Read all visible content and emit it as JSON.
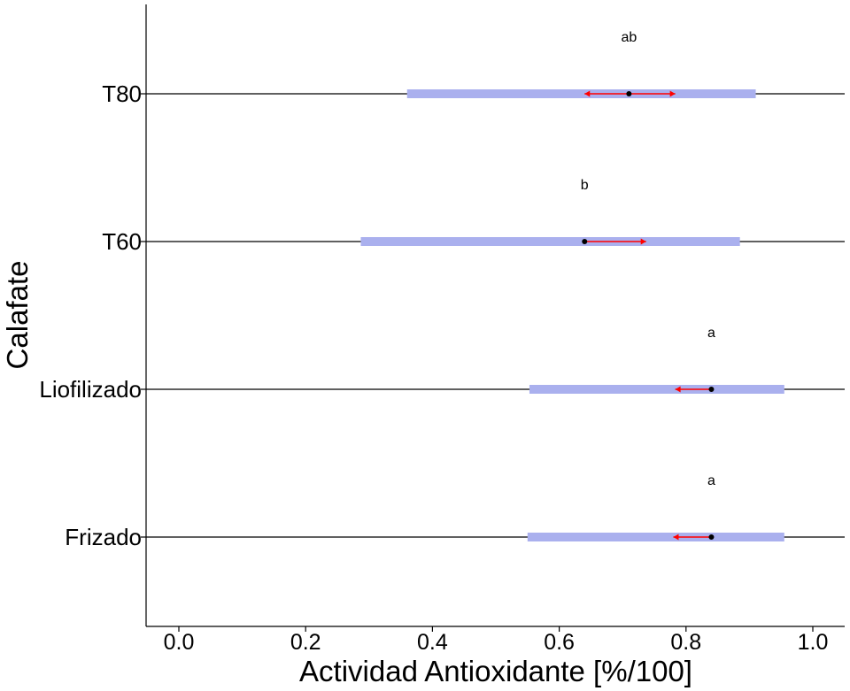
{
  "chart_data": {
    "type": "interval",
    "xlabel": "Actividad Antioxidante [%/100]",
    "ylabel": "Calafate",
    "xlim": [
      -0.05,
      1.05
    ],
    "xticks": [
      0.0,
      0.2,
      0.4,
      0.6,
      0.8,
      1.0
    ],
    "xtick_labels": [
      "0.0",
      "0.2",
      "0.4",
      "0.6",
      "0.8",
      "1.0"
    ],
    "categories": [
      "Frizado",
      "Liofilizado",
      "T60",
      "T80"
    ],
    "mean": [
      0.84,
      0.84,
      0.64,
      0.71
    ],
    "ci_low": [
      0.55,
      0.553,
      0.287,
      0.36
    ],
    "ci_high": [
      0.955,
      0.955,
      0.885,
      0.91
    ],
    "comparison_low": [
      0.78,
      0.783,
      0.64,
      0.64
    ],
    "comparison_high": [
      0.84,
      0.84,
      0.737,
      0.783
    ],
    "group_letters": [
      "a",
      "a",
      "b",
      "ab"
    ],
    "colors": {
      "ci": "#aab0ee",
      "arrow": "#ff0000",
      "point": "#000000",
      "line": "#000000"
    },
    "grid": false
  }
}
